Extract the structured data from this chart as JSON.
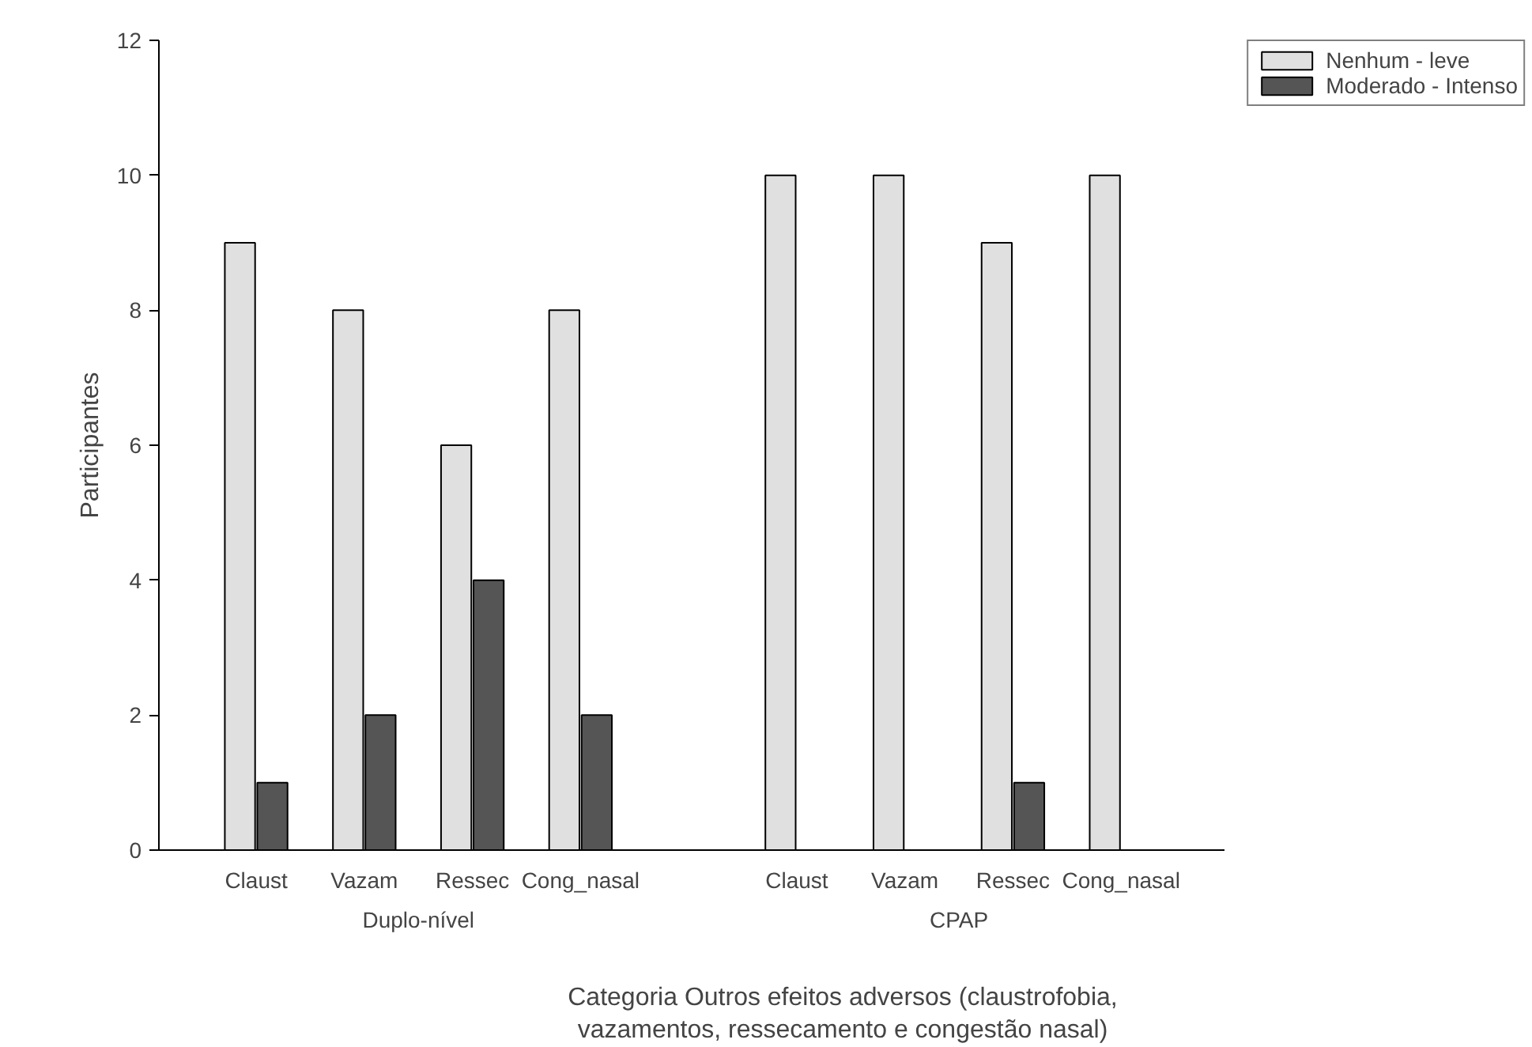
{
  "chart_data": {
    "type": "bar",
    "ylabel": "Participantes",
    "xlabel": "Categoria Outros efeitos adversos (claustrofobia, vazamentos, ressecamento e congestão nasal)",
    "categories": [
      "Claust",
      "Vazam",
      "Ressec",
      "Cong_nasal",
      null,
      "Claust",
      "Vazam",
      "Ressec",
      "Cong_nasal"
    ],
    "series": [
      {
        "name": "Nenhum - leve",
        "color": "#e0e0e0",
        "values": [
          9,
          8,
          6,
          8,
          null,
          10,
          10,
          9,
          10
        ]
      },
      {
        "name": "Moderado - Intenso",
        "color": "#555555",
        "values": [
          1,
          2,
          4,
          2,
          null,
          0,
          0,
          1,
          0
        ]
      }
    ],
    "annotations": [
      "Duplo-nível",
      "CPAP"
    ],
    "ylim": [
      0,
      12
    ],
    "yticks": [
      0,
      2,
      4,
      6,
      8,
      10,
      12
    ],
    "grid": false,
    "legend": "top right"
  }
}
